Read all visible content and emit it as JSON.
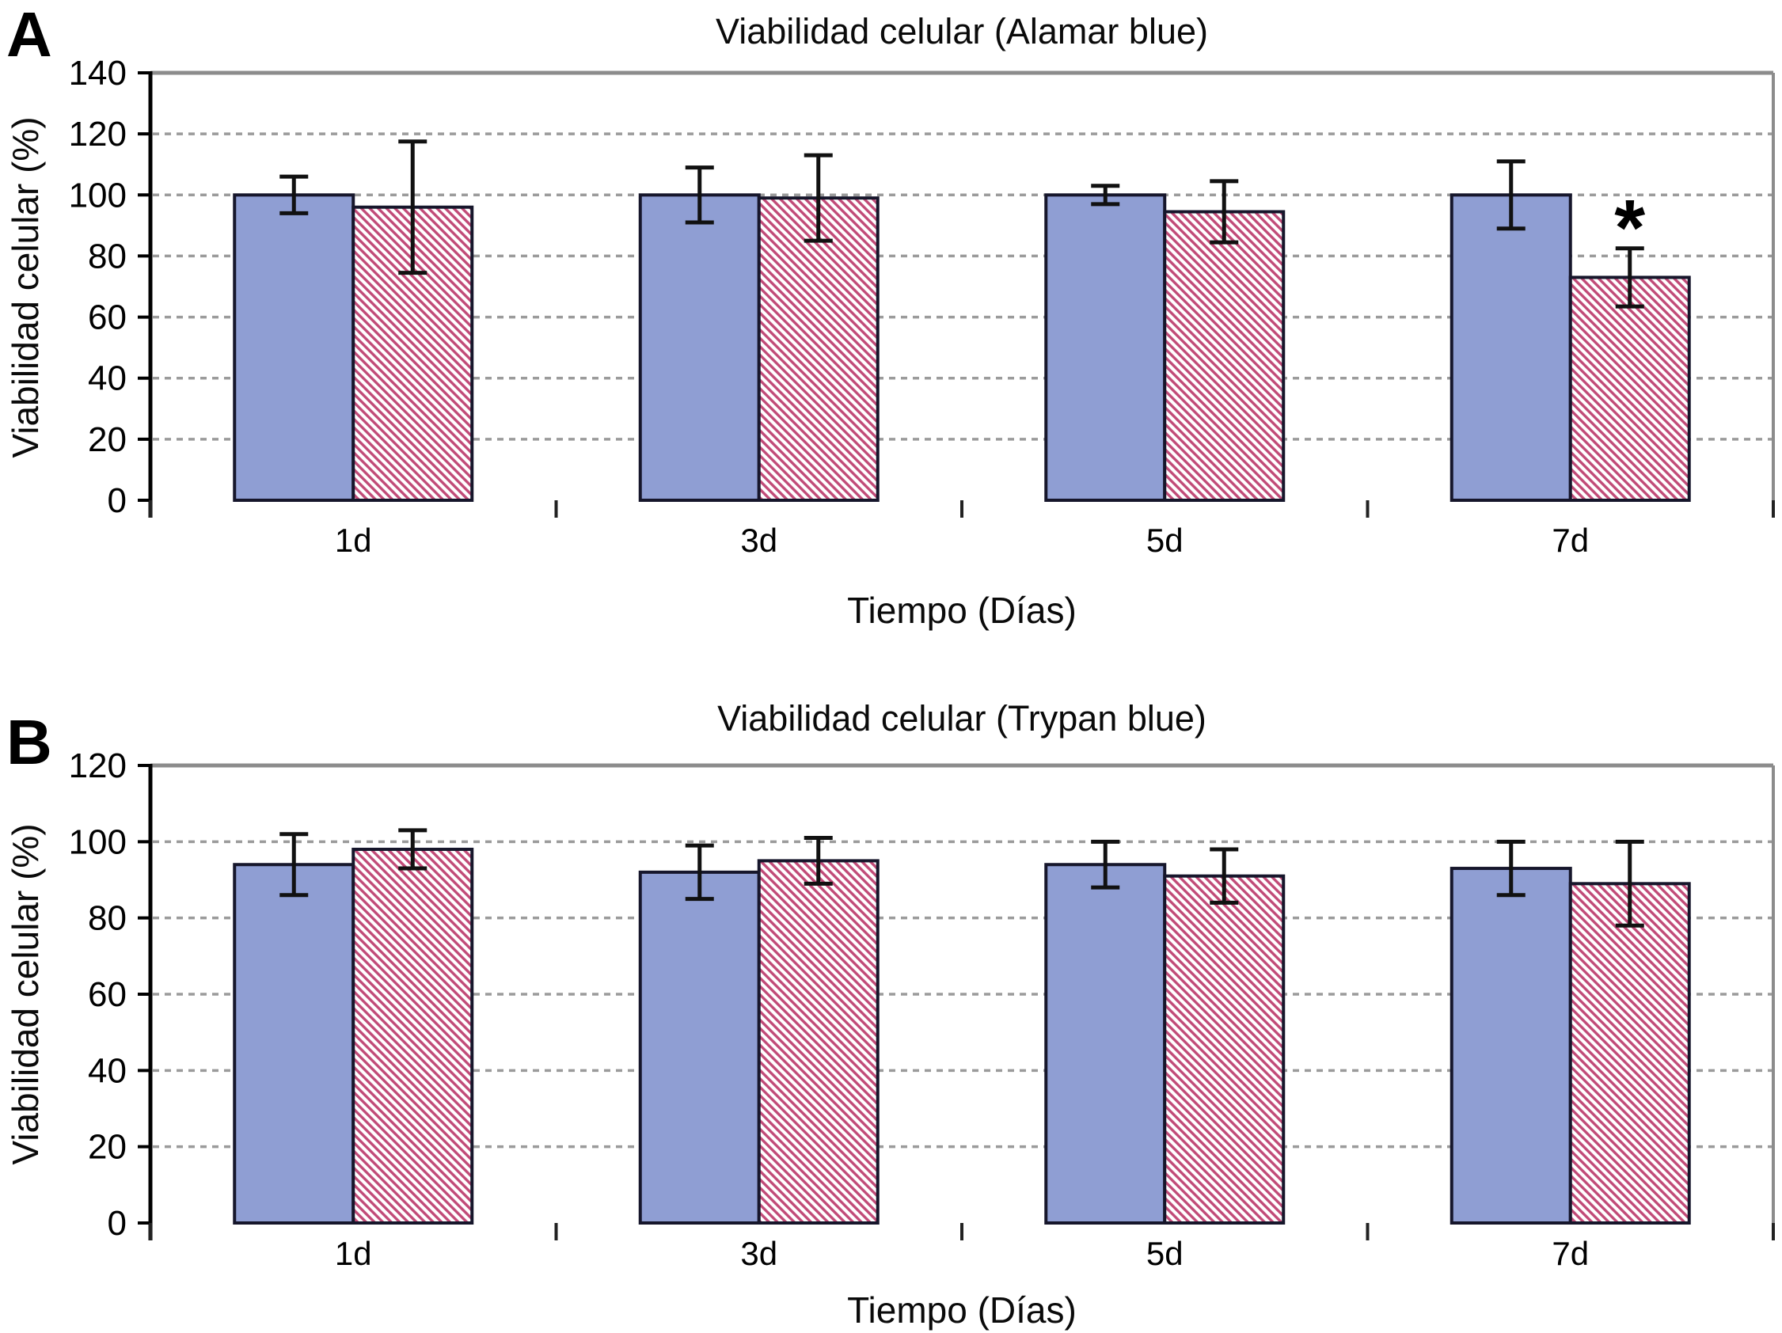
{
  "style_colors": {
    "solid_bar_fill": "#8F9ED3",
    "bar_border": "#16162B",
    "hatch_stripe": "#C14B78",
    "hatch_background": "#FFFFFF",
    "gridline": "#9B9B9B",
    "frame": "#8C8C8C",
    "axis": "#000000",
    "baseline": "#2B2B2B",
    "error_bar": "#111111",
    "text": "#000000"
  },
  "chart_data": [
    {
      "type": "bar",
      "panel_label": "A",
      "title": "Viabilidad celular (Alamar blue)",
      "xlabel": "Tiempo (Días)",
      "ylabel": "Viabilidad celular (%)",
      "ylim": [
        0,
        140
      ],
      "ytick_step": 20,
      "yticks": [
        0,
        20,
        40,
        60,
        80,
        100,
        120,
        140
      ],
      "categories": [
        "1d",
        "3d",
        "5d",
        "7d"
      ],
      "grid": "horizontal-dashed",
      "legend": "none",
      "series": [
        {
          "name": "solid_blue_bar",
          "style": "solid",
          "values": [
            100,
            100,
            100,
            100
          ],
          "errors": [
            6,
            9,
            3,
            11
          ],
          "annotations": [
            "",
            "",
            "",
            ""
          ]
        },
        {
          "name": "hatched_pink_bar",
          "style": "hatched",
          "values": [
            96,
            99,
            94.5,
            73
          ],
          "errors": [
            21.5,
            14,
            10,
            9.5
          ],
          "annotations": [
            "",
            "",
            "",
            "*"
          ]
        }
      ]
    },
    {
      "type": "bar",
      "panel_label": "B",
      "title": "Viabilidad celular (Trypan blue)",
      "xlabel": "Tiempo (Días)",
      "ylabel": "Viabilidad celular (%)",
      "ylim": [
        0,
        120
      ],
      "ytick_step": 20,
      "yticks": [
        0,
        20,
        40,
        60,
        80,
        100,
        120
      ],
      "categories": [
        "1d",
        "3d",
        "5d",
        "7d"
      ],
      "grid": "horizontal-dashed",
      "legend": "none",
      "series": [
        {
          "name": "solid_blue_bar",
          "style": "solid",
          "values": [
            94,
            92,
            94,
            93
          ],
          "errors": [
            8,
            7,
            6,
            7
          ],
          "annotations": [
            "",
            "",
            "",
            ""
          ]
        },
        {
          "name": "hatched_pink_bar",
          "style": "hatched",
          "values": [
            98,
            95,
            91,
            89
          ],
          "errors": [
            5,
            6,
            7,
            11
          ],
          "annotations": [
            "",
            "",
            "",
            ""
          ]
        }
      ]
    }
  ]
}
